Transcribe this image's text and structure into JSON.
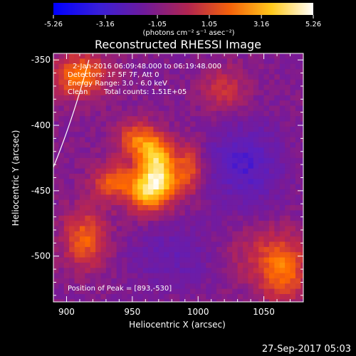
{
  "chart_data": {
    "type": "heatmap",
    "title": "Reconstructed RHESSI Image",
    "xlabel": "Heliocentric X (arcsec)",
    "ylabel": "Heliocentric Y (arcsec)",
    "xlim": [
      890,
      1080
    ],
    "ylim": [
      -535,
      -345
    ],
    "x_ticks": [
      900,
      950,
      1000,
      1050
    ],
    "y_ticks": [
      -350,
      -400,
      -450,
      -500
    ],
    "colorbar": {
      "ticks": [
        "-5.26",
        "-3.16",
        "-1.05",
        "1.05",
        "3.16",
        "5.26"
      ],
      "range": [
        -5.26,
        5.26
      ],
      "unit_label": "(photons cm⁻² s⁻¹ asec⁻²)",
      "colors": [
        "#0000ff",
        "#5a1fc0",
        "#7a1a95",
        "#c0284a",
        "#ff6a00",
        "#ffd21a",
        "#ffffff"
      ]
    },
    "annotations": {
      "line1": "2-Jan-2016 06:09:48.000 to 06:19:48.000",
      "line2": "Detectors: 1F 5F 7F, Att 0",
      "line3": "Energy Range: 3.0 - 6.0 keV",
      "line4_left": "Clean",
      "line4_right": "Total counts: 1.51E+05",
      "peak": "Position of Peak = [893,-530]"
    },
    "limb_arc": {
      "points": [
        [
          890,
          -432
        ],
        [
          905,
          -395
        ],
        [
          917,
          -350
        ]
      ]
    },
    "features": [
      {
        "x": 970,
        "y": -442,
        "sx": 10,
        "sy": 14,
        "amp": 5.26
      },
      {
        "x": 967,
        "y": -420,
        "sx": 9,
        "sy": 11,
        "amp": 3.1
      },
      {
        "x": 957,
        "y": -452,
        "sx": 9,
        "sy": 11,
        "amp": 3.0
      },
      {
        "x": 952,
        "y": -411,
        "sx": 10,
        "sy": 10,
        "amp": 2.8
      },
      {
        "x": 935,
        "y": -443,
        "sx": 11,
        "sy": 10,
        "amp": 2.9
      },
      {
        "x": 914,
        "y": -487,
        "sx": 12,
        "sy": 16,
        "amp": 3.0
      },
      {
        "x": 910,
        "y": -362,
        "sx": 15,
        "sy": 12,
        "amp": 3.6
      },
      {
        "x": 993,
        "y": -433,
        "sx": 8,
        "sy": 14,
        "amp": 2.6
      },
      {
        "x": 1020,
        "y": -373,
        "sx": 12,
        "sy": 12,
        "amp": 2.0
      },
      {
        "x": 1065,
        "y": -510,
        "sx": 13,
        "sy": 18,
        "amp": 3.3
      },
      {
        "x": 1040,
        "y": -500,
        "sx": 16,
        "sy": 16,
        "amp": 1.1
      },
      {
        "x": 980,
        "y": -500,
        "sx": 22,
        "sy": 16,
        "amp": -1.2
      },
      {
        "x": 1035,
        "y": -430,
        "sx": 20,
        "sy": 22,
        "amp": -2.0
      }
    ]
  },
  "footer": {
    "timestamp": "27-Sep-2017 05:03"
  }
}
